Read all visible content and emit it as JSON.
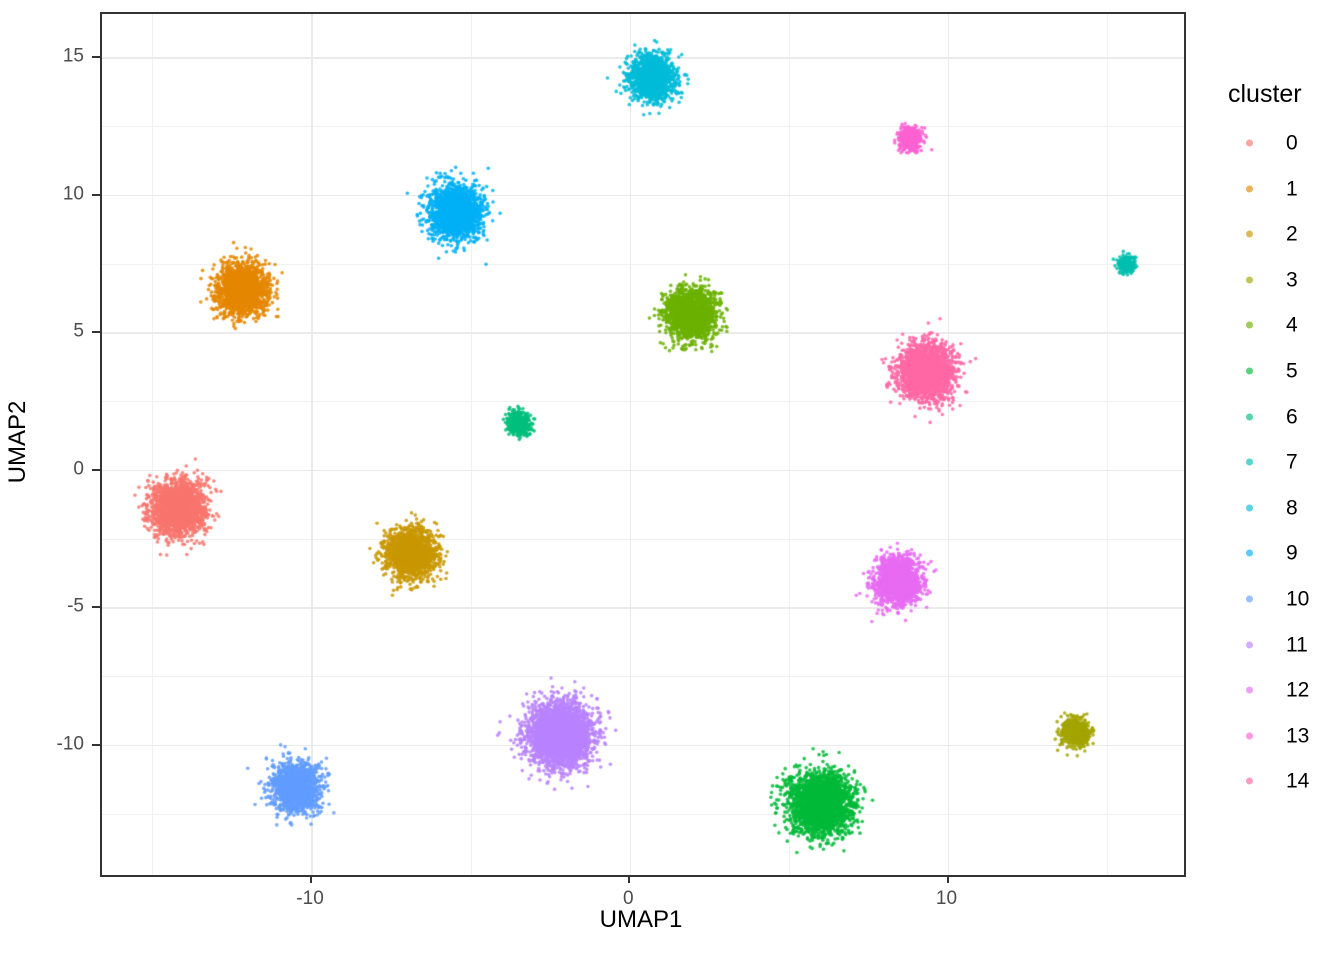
{
  "figure": {
    "background": "#FFFFFF",
    "panel_border_color": "#333333",
    "grid_major_color": "#EBEBEB",
    "grid_minor_color": "#F1F1F1",
    "tick_color": "#333333",
    "tick_label_color": "#4D4D4D",
    "text_color": "#000000"
  },
  "chart_data": {
    "type": "scatter",
    "title": "",
    "xlabel": "UMAP1",
    "ylabel": "UMAP2",
    "xlim": [
      -16.6,
      17.4
    ],
    "ylim": [
      -14.7,
      16.6
    ],
    "x_major_ticks": [
      -10,
      0,
      10
    ],
    "x_minor_gridlines": [
      -15,
      -5,
      5,
      15
    ],
    "y_major_ticks": [
      15,
      10,
      5,
      0,
      -5,
      -10
    ],
    "y_minor_gridlines": [
      12.5,
      7.5,
      2.5,
      -2.5,
      -7.5,
      -12.5
    ],
    "grid": true,
    "legend_position": "right",
    "legend_title": "cluster",
    "clusters": [
      {
        "id": "0",
        "color": "#F8766D",
        "center": [
          -14.2,
          -1.4
        ],
        "radius_px": 32
      },
      {
        "id": "1",
        "color": "#E58700",
        "center": [
          -12.2,
          6.6
        ],
        "radius_px": 30
      },
      {
        "id": "2",
        "color": "#C99800",
        "center": [
          -6.9,
          -3.0
        ],
        "radius_px": 29
      },
      {
        "id": "3",
        "color": "#A3A500",
        "center": [
          14.0,
          -9.5
        ],
        "radius_px": 17
      },
      {
        "id": "4",
        "color": "#6BB100",
        "center": [
          1.9,
          5.7
        ],
        "radius_px": 30
      },
      {
        "id": "5",
        "color": "#00BA38",
        "center": [
          6.0,
          -12.1
        ],
        "radius_px": 36
      },
      {
        "id": "6",
        "color": "#00BF7D",
        "center": [
          -3.5,
          1.7
        ],
        "radius_px": 14
      },
      {
        "id": "7",
        "color": "#00C0AF",
        "center": [
          15.6,
          7.5
        ],
        "radius_px": 10
      },
      {
        "id": "8",
        "color": "#00BCD8",
        "center": [
          0.7,
          14.3
        ],
        "radius_px": 27
      },
      {
        "id": "9",
        "color": "#00B0F6",
        "center": [
          -5.5,
          9.4
        ],
        "radius_px": 31
      },
      {
        "id": "10",
        "color": "#619CFF",
        "center": [
          -10.5,
          -11.5
        ],
        "radius_px": 28
      },
      {
        "id": "11",
        "color": "#B983FF",
        "center": [
          -2.2,
          -9.6
        ],
        "radius_px": 38
      },
      {
        "id": "12",
        "color": "#E76BF3",
        "center": [
          8.4,
          -4.0
        ],
        "radius_px": 28
      },
      {
        "id": "13",
        "color": "#FD61D1",
        "center": [
          8.8,
          12.1
        ],
        "radius_px": 14
      },
      {
        "id": "14",
        "color": "#FF67A4",
        "center": [
          9.3,
          3.6
        ],
        "radius_px": 33
      }
    ]
  }
}
